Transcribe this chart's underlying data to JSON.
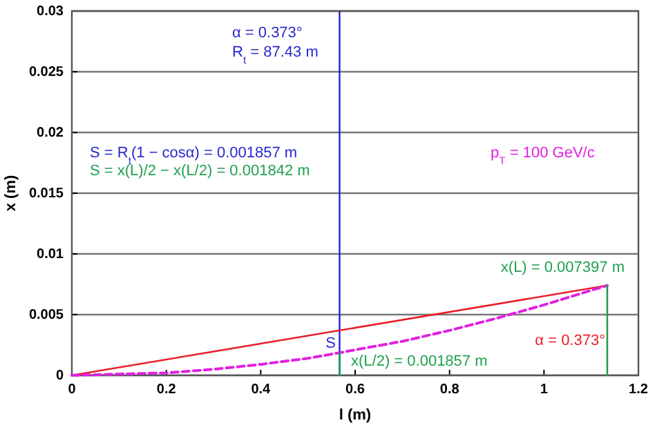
{
  "chart_data": {
    "type": "line",
    "xlabel": "l (m)",
    "ylabel": "x (m)",
    "xlim": [
      0,
      1.2
    ],
    "xticks": [
      0,
      0.2,
      0.4,
      0.6,
      0.8,
      1,
      1.2
    ],
    "ylim": [
      0,
      0.03
    ],
    "yticks": [
      0,
      0.005,
      0.01,
      0.015,
      0.02,
      0.025,
      0.03
    ],
    "grid": "y",
    "marker": "none",
    "series": [
      {
        "color": "#e8202a",
        "x": [
          0,
          1.134
        ],
        "values": [
          0,
          0.007397
        ],
        "line_style": "solid"
      },
      {
        "color": "#e020e0",
        "x": [
          0,
          0.1,
          0.2,
          0.3,
          0.4,
          0.5,
          0.567,
          0.6,
          0.7,
          0.8,
          0.9,
          1.0,
          1.1,
          1.134
        ],
        "values": [
          0,
          0.0001,
          0.0002,
          0.0005,
          0.0009,
          0.0014,
          0.001857,
          0.0021,
          0.0028,
          0.0037,
          0.0047,
          0.0058,
          0.007,
          0.007397
        ],
        "line_style": "dashed"
      },
      {
        "color": "#20a050",
        "x": [
          1.134,
          1.134
        ],
        "values": [
          0,
          0.007397
        ],
        "line_style": "solid"
      },
      {
        "color": "#20a050",
        "x": [
          0.567,
          0.567
        ],
        "values": [
          0,
          0.001857
        ],
        "line_style": "solid"
      }
    ],
    "ref_lines": [
      {
        "axis": "x",
        "value": 0.567,
        "color": "#2020d0"
      }
    ],
    "annotations": [
      "α = 0.373°",
      "R$_{t}$ = 87.43 m",
      "S = R$_{t}$(1 − cosα) = 0.001857 m",
      "S = x(L)/2 − x(L/2) = 0.001842 m",
      "p$_{T}$ = 100 GeV/c",
      "x(L) = 0.007397 m",
      "α = 0.373°",
      "S",
      "x(L/2) = 0.001857 m"
    ]
  }
}
